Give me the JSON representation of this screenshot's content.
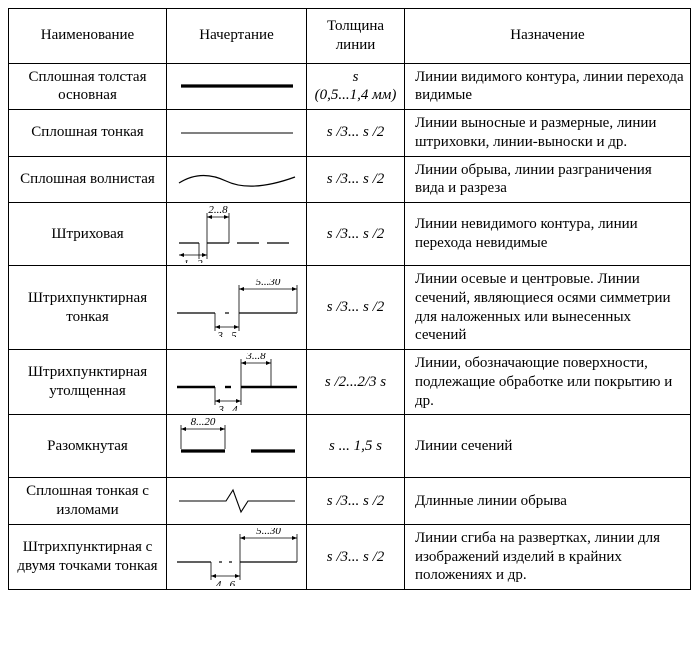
{
  "headers": {
    "name": "Наименование",
    "style": "Начертание",
    "thickness": "Толщина линии",
    "purpose": "Назначение"
  },
  "rows": [
    {
      "name": "Сплошная толстая основная",
      "thickness_html": "<i>s</i><br>(0,5...1,4 мм)",
      "purpose": "Линии видимого контура, линии перехода видимые",
      "line": {
        "type": "solid-thick",
        "stroke_width": 3.2
      }
    },
    {
      "name": "Сплошная тонкая",
      "thickness_html": "<i>s</i> /3... <i>s</i> /2",
      "purpose": "Линии выносные и размерные, линии штриховки, линии-выноски и др.",
      "line": {
        "type": "solid-thin",
        "stroke_width": 1.0
      }
    },
    {
      "name": "Сплошная волнистая",
      "thickness_html": "<i>s</i> /3... <i>s</i> /2",
      "purpose": "Линии обрыва, линии разграничения вида и разреза",
      "line": {
        "type": "wavy",
        "stroke_width": 1.2
      }
    },
    {
      "name": "Штриховая",
      "thickness_html": "<i>s</i> /3... <i>s</i> /2",
      "purpose": "Линии невидимого контура, линии перехода невидимые",
      "line": {
        "type": "dashed",
        "stroke_width": 1.2,
        "dash_label": "2...8",
        "gap_label": "1...2"
      }
    },
    {
      "name": "Штрихпунктирная тонкая",
      "thickness_html": "<i>s</i> /3... <i>s</i> /2",
      "purpose": "Линии осевые и центровые. Линии сечений, являющиеся осями симметрии для наложенных или вынесенных сечений",
      "line": {
        "type": "dash-dot-thin",
        "stroke_width": 1.2,
        "dash_label": "5...30",
        "gap_label": "3...5"
      }
    },
    {
      "name": "Штрихпунктирная утолщенная",
      "thickness_html": "<i>s</i> /2...2/3 <i>s</i>",
      "purpose": "Линии, обозначающие поверхности, подлежащие обработке или покрытию и др.",
      "line": {
        "type": "dash-dot-thick",
        "stroke_width": 2.4,
        "dash_label": "3...8",
        "gap_label": "3...4"
      }
    },
    {
      "name": "Разомкнутая",
      "thickness_html": "<i>s</i> ... 1,5 <i>s</i>",
      "purpose": "Линии сечений",
      "line": {
        "type": "open",
        "stroke_width": 3.2,
        "dash_label": "8...20"
      }
    },
    {
      "name": "Сплошная тонкая с изломами",
      "thickness_html": "<i>s</i> /3... <i>s</i> /2",
      "purpose": "Длинные линии обрыва",
      "line": {
        "type": "zigzag",
        "stroke_width": 1.1
      }
    },
    {
      "name": "Штрихпунктирная с двумя точками тонкая",
      "thickness_html": "<i>s</i> /3... <i>s</i> /2",
      "purpose": "Линии сгиба на развертках, линии для изображений изделий в крайних положениях и др.",
      "line": {
        "type": "dash-2dot",
        "stroke_width": 1.2,
        "dash_label": "5...30",
        "gap_label": "4...6"
      }
    }
  ],
  "colors": {
    "stroke": "#000000",
    "bg": "#ffffff"
  }
}
